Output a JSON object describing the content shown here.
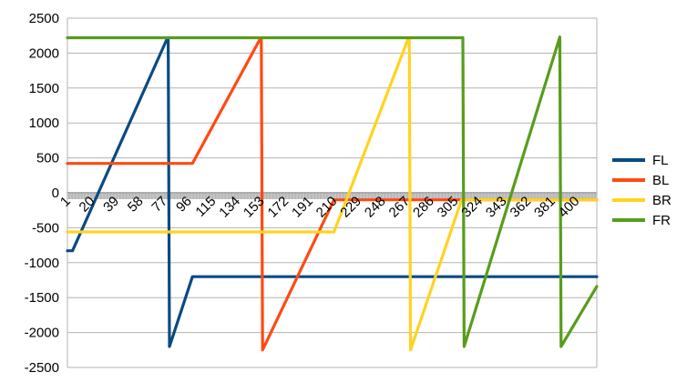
{
  "chart_data": {
    "type": "line",
    "title": "",
    "xlabel": "",
    "ylabel": "",
    "ylim": [
      -2500,
      2500
    ],
    "y_ticks": [
      2500,
      2000,
      1500,
      1000,
      500,
      0,
      -500,
      -1000,
      -1500,
      -2000,
      -2500
    ],
    "x_range": [
      1,
      416
    ],
    "x_tick_labels": [
      "1",
      "20",
      "39",
      "58",
      "77",
      "96",
      "115",
      "134",
      "153",
      "172",
      "191",
      "210",
      "229",
      "248",
      "267",
      "286",
      "305",
      "324",
      "343",
      "362",
      "381",
      "400"
    ],
    "grid": true,
    "legend_position": "right",
    "series": [
      {
        "name": "FL",
        "color": "#0a4a82",
        "points": [
          [
            1,
            -830
          ],
          [
            5,
            -830
          ],
          [
            79,
            2200
          ],
          [
            80,
            2200
          ],
          [
            81,
            -2200
          ],
          [
            99,
            -1200
          ],
          [
            416,
            -1200
          ]
        ]
      },
      {
        "name": "BL",
        "color": "#ff4a12",
        "points": [
          [
            1,
            420
          ],
          [
            99,
            420
          ],
          [
            152,
            2200
          ],
          [
            153,
            2200
          ],
          [
            154,
            -2250
          ],
          [
            210,
            -100
          ],
          [
            416,
            -100
          ]
        ]
      },
      {
        "name": "BR",
        "color": "#ffd320",
        "points": [
          [
            1,
            -560
          ],
          [
            210,
            -560
          ],
          [
            268,
            2200
          ],
          [
            269,
            2200
          ],
          [
            270,
            -2250
          ],
          [
            310,
            -100
          ],
          [
            416,
            -100
          ]
        ]
      },
      {
        "name": "FR",
        "color": "#579d1c",
        "points": [
          [
            1,
            2220
          ],
          [
            311,
            2220
          ],
          [
            312,
            -2200
          ],
          [
            387,
            2230
          ],
          [
            388,
            -2200
          ],
          [
            416,
            -1340
          ]
        ]
      }
    ]
  }
}
